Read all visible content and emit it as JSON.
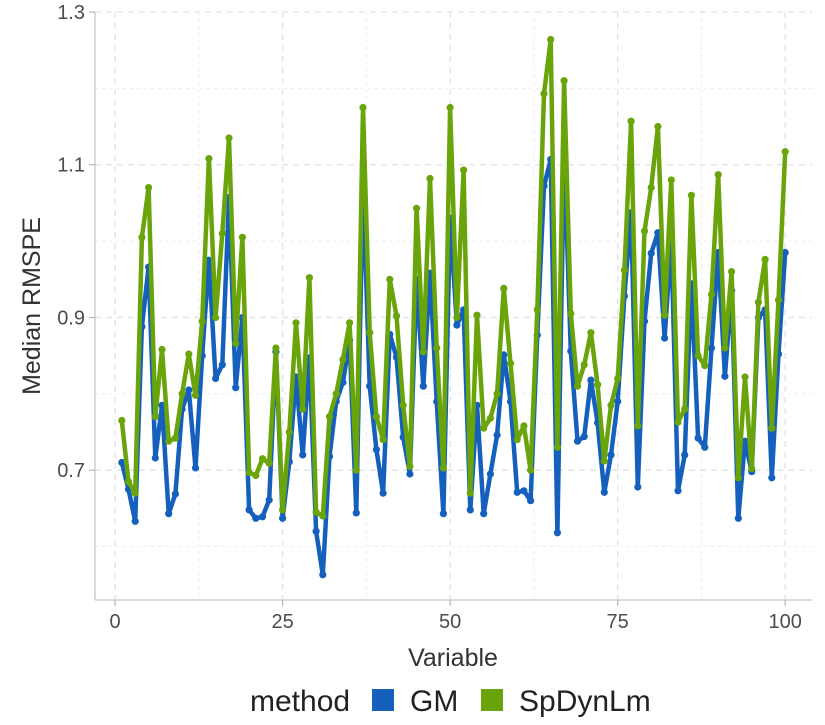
{
  "chart_data": {
    "type": "line",
    "xlabel": "Variable",
    "ylabel": "Median RMSPE",
    "xlim": [
      -3,
      104
    ],
    "ylim": [
      0.53,
      1.3
    ],
    "xticks": [
      0,
      25,
      50,
      75,
      100
    ],
    "xtick_labels": [
      "0",
      "25",
      "50",
      "75",
      "100"
    ],
    "yticks": [
      0.7,
      0.9,
      1.1,
      1.3
    ],
    "ytick_labels": [
      "0.7",
      "0.9",
      "1.1",
      "1.3"
    ],
    "grid": true,
    "legend": {
      "title": "method",
      "position": "bottom"
    },
    "series": [
      {
        "name": "GM",
        "color": "#1560bd",
        "x": [
          1,
          2,
          3,
          4,
          5,
          6,
          7,
          8,
          9,
          10,
          11,
          12,
          13,
          14,
          15,
          16,
          17,
          18,
          19,
          20,
          21,
          22,
          23,
          24,
          25,
          26,
          27,
          28,
          29,
          30,
          31,
          32,
          33,
          34,
          35,
          36,
          37,
          38,
          39,
          40,
          41,
          42,
          43,
          44,
          45,
          46,
          47,
          48,
          49,
          50,
          51,
          52,
          53,
          54,
          55,
          56,
          57,
          58,
          59,
          60,
          61,
          62,
          63,
          64,
          65,
          66,
          67,
          68,
          69,
          70,
          71,
          72,
          73,
          74,
          75,
          76,
          77,
          78,
          79,
          80,
          81,
          82,
          83,
          84,
          85,
          86,
          87,
          88,
          89,
          90,
          91,
          92,
          93,
          94,
          95,
          96,
          97,
          98,
          99,
          100
        ],
        "values": [
          0.71,
          0.675,
          0.633,
          0.888,
          0.966,
          0.716,
          0.785,
          0.643,
          0.669,
          0.78,
          0.805,
          0.703,
          0.85,
          0.975,
          0.82,
          0.838,
          1.057,
          0.808,
          0.9,
          0.648,
          0.637,
          0.639,
          0.661,
          0.855,
          0.637,
          0.711,
          0.822,
          0.72,
          0.847,
          0.62,
          0.563,
          0.718,
          0.79,
          0.815,
          0.87,
          0.644,
          1.077,
          0.81,
          0.727,
          0.67,
          0.878,
          0.848,
          0.743,
          0.695,
          0.95,
          0.81,
          0.958,
          0.79,
          0.643,
          1.03,
          0.89,
          0.91,
          0.648,
          0.785,
          0.643,
          0.695,
          0.746,
          0.851,
          0.79,
          0.671,
          0.673,
          0.66,
          0.877,
          1.072,
          1.107,
          0.618,
          1.12,
          0.856,
          0.738,
          0.744,
          0.818,
          0.762,
          0.671,
          0.72,
          0.79,
          0.928,
          1.037,
          0.678,
          0.895,
          0.984,
          1.011,
          0.873,
          1.002,
          0.673,
          0.72,
          0.944,
          0.742,
          0.73,
          0.86,
          0.985,
          0.823,
          0.935,
          0.637,
          0.738,
          0.698,
          0.9,
          0.91,
          0.69,
          0.852,
          0.985
        ]
      },
      {
        "name": "SpDynLm",
        "color": "#6aa40b",
        "x": [
          1,
          2,
          3,
          4,
          5,
          6,
          7,
          8,
          9,
          10,
          11,
          12,
          13,
          14,
          15,
          16,
          17,
          18,
          19,
          20,
          21,
          22,
          23,
          24,
          25,
          26,
          27,
          28,
          29,
          30,
          31,
          32,
          33,
          34,
          35,
          36,
          37,
          38,
          39,
          40,
          41,
          42,
          43,
          44,
          45,
          46,
          47,
          48,
          49,
          50,
          51,
          52,
          53,
          54,
          55,
          56,
          57,
          58,
          59,
          60,
          61,
          62,
          63,
          64,
          65,
          66,
          67,
          68,
          69,
          70,
          71,
          72,
          73,
          74,
          75,
          76,
          77,
          78,
          79,
          80,
          81,
          82,
          83,
          84,
          85,
          86,
          87,
          88,
          89,
          90,
          91,
          92,
          93,
          94,
          95,
          96,
          97,
          98,
          99,
          100
        ],
        "values": [
          0.765,
          0.685,
          0.67,
          1.005,
          1.07,
          0.77,
          0.858,
          0.738,
          0.742,
          0.8,
          0.852,
          0.798,
          0.895,
          1.108,
          0.9,
          1.01,
          1.135,
          0.866,
          1.005,
          0.697,
          0.693,
          0.715,
          0.709,
          0.86,
          0.648,
          0.75,
          0.893,
          0.78,
          0.952,
          0.645,
          0.64,
          0.77,
          0.8,
          0.845,
          0.893,
          0.7,
          1.175,
          0.88,
          0.77,
          0.74,
          0.95,
          0.902,
          0.785,
          0.705,
          1.043,
          0.855,
          1.082,
          0.86,
          0.703,
          1.175,
          0.9,
          1.093,
          0.67,
          0.903,
          0.755,
          0.768,
          0.8,
          0.938,
          0.84,
          0.74,
          0.758,
          0.7,
          0.91,
          1.193,
          1.264,
          0.73,
          1.21,
          0.905,
          0.81,
          0.838,
          0.88,
          0.812,
          0.712,
          0.785,
          0.82,
          0.962,
          1.157,
          0.758,
          1.013,
          1.07,
          1.15,
          0.903,
          1.08,
          0.763,
          0.78,
          1.06,
          0.85,
          0.837,
          0.93,
          1.087,
          0.86,
          0.96,
          0.69,
          0.822,
          0.702,
          0.92,
          0.976,
          0.755,
          0.923,
          1.117
        ]
      }
    ]
  }
}
